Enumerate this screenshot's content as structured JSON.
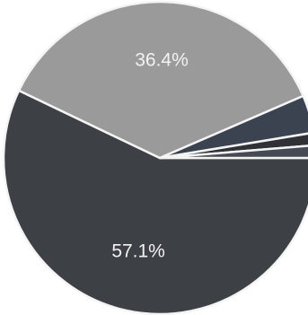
{
  "chart_data": {
    "type": "pie",
    "slices": [
      {
        "value": 57.1,
        "label": "57.1%",
        "color": "#3d4045"
      },
      {
        "value": 36.4,
        "label": "36.4%",
        "color": "#9a9a9a"
      },
      {
        "value": 3.9,
        "label": "",
        "color": "#3b4350"
      },
      {
        "value": 1.3,
        "label": "",
        "color": "#2f3136"
      },
      {
        "value": 1.3,
        "label": "",
        "color": "#464a52"
      }
    ],
    "start_angle_deg": 0,
    "direction": "clockwise-from-right",
    "show_legend": false
  }
}
